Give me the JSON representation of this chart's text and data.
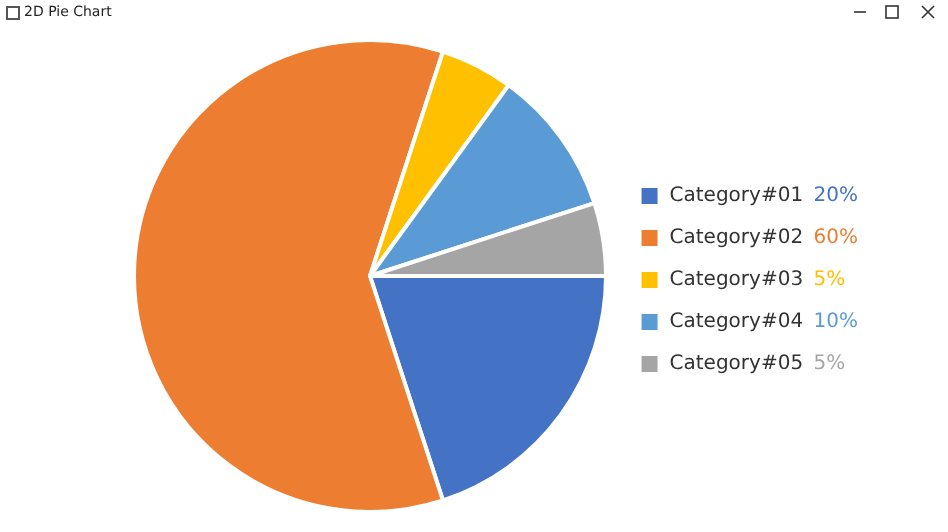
{
  "chart_data": {
    "type": "pie",
    "title": "2D Pie Chart",
    "categories": [
      "Category#01",
      "Category#02",
      "Category#03",
      "Category#04",
      "Category#05"
    ],
    "values": [
      20,
      60,
      5,
      10,
      5
    ],
    "colors": [
      "#4472c4",
      "#ed7d31",
      "#ffc000",
      "#5b9bd5",
      "#a5a5a5"
    ],
    "value_labels": [
      "20%",
      "60%",
      "5%",
      "10%",
      "5%"
    ],
    "legend": "right"
  }
}
